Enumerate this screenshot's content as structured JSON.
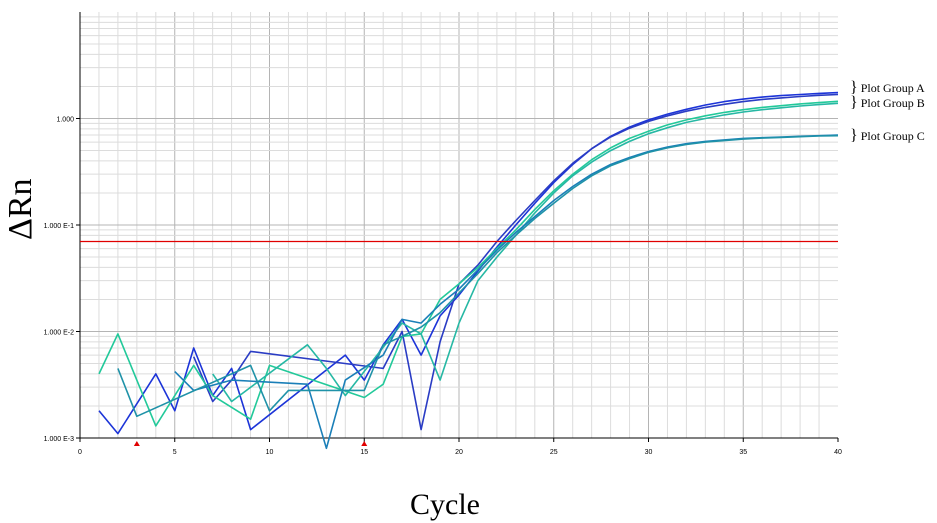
{
  "chart_data": {
    "type": "line",
    "title": "",
    "xlabel": "Cycle",
    "ylabel": "ΔRn",
    "y_scale": "log",
    "xlim": [
      0,
      40
    ],
    "ylim": [
      0.001,
      10
    ],
    "x_ticks": [
      "0",
      "5",
      "10",
      "15",
      "20",
      "25",
      "30",
      "35",
      "40"
    ],
    "y_ticks": [
      "1.000 E-3",
      "1.000 E-2",
      "1.000 E-1",
      "1.000"
    ],
    "grid": true,
    "threshold": 0.07,
    "threshold_color": "#e00000",
    "baseline_markers": [
      3,
      15
    ],
    "plot_groups": [
      {
        "name": "Plot Group A",
        "color": "#1c34d8",
        "plateau": 1.75
      },
      {
        "name": "Plot Group B",
        "color": "#22c99a",
        "plateau": 1.45
      },
      {
        "name": "Plot Group C",
        "color": "#1a7fb8",
        "plateau": 0.7
      }
    ],
    "series": [
      {
        "group": "A",
        "color": "#1c34d8",
        "x": [
          1,
          2,
          4,
          5,
          6,
          7,
          8,
          9,
          14,
          15,
          16,
          17,
          18,
          19,
          20,
          21,
          22,
          23,
          24,
          25,
          26,
          27,
          28,
          29,
          30,
          31,
          32,
          33,
          34,
          35,
          36,
          37,
          38,
          39,
          40
        ],
        "y": [
          0.0018,
          0.0011,
          0.004,
          0.0018,
          0.007,
          0.0025,
          0.0045,
          0.0012,
          0.006,
          0.0035,
          0.0075,
          0.013,
          0.006,
          0.014,
          0.022,
          0.037,
          0.062,
          0.1,
          0.16,
          0.25,
          0.37,
          0.52,
          0.68,
          0.83,
          0.97,
          1.1,
          1.22,
          1.34,
          1.44,
          1.52,
          1.59,
          1.64,
          1.68,
          1.72,
          1.75
        ]
      },
      {
        "group": "A",
        "color": "#2a3cc4",
        "x": [
          6,
          7,
          8,
          9,
          16,
          17,
          18,
          19,
          20,
          21,
          22,
          23,
          24,
          25,
          26,
          27,
          28,
          29,
          30,
          31,
          32,
          33,
          34,
          35,
          36,
          37,
          38,
          39,
          40
        ],
        "y": [
          0.0058,
          0.0022,
          0.0035,
          0.0065,
          0.0045,
          0.01,
          0.0012,
          0.008,
          0.028,
          0.042,
          0.07,
          0.11,
          0.17,
          0.26,
          0.38,
          0.52,
          0.67,
          0.81,
          0.94,
          1.06,
          1.17,
          1.27,
          1.36,
          1.44,
          1.51,
          1.56,
          1.61,
          1.65,
          1.68
        ]
      },
      {
        "group": "B",
        "color": "#22c99a",
        "x": [
          1,
          2,
          3,
          4,
          6,
          7,
          9,
          10,
          15,
          16,
          17,
          18,
          19,
          20,
          21,
          22,
          23,
          24,
          25,
          26,
          27,
          28,
          29,
          30,
          31,
          32,
          33,
          34,
          35,
          36,
          37,
          38,
          39,
          40
        ],
        "y": [
          0.004,
          0.0095,
          0.0035,
          0.0013,
          0.0048,
          0.0025,
          0.0015,
          0.0048,
          0.0024,
          0.0032,
          0.009,
          0.0095,
          0.02,
          0.028,
          0.04,
          0.06,
          0.09,
          0.14,
          0.21,
          0.3,
          0.41,
          0.53,
          0.65,
          0.76,
          0.87,
          0.97,
          1.06,
          1.14,
          1.21,
          1.27,
          1.32,
          1.37,
          1.41,
          1.45
        ]
      },
      {
        "group": "B",
        "color": "#26b8a4",
        "x": [
          7,
          8,
          12,
          13,
          14,
          17,
          18,
          19,
          20,
          21,
          22,
          23,
          24,
          25,
          26,
          27,
          28,
          29,
          30,
          31,
          32,
          33,
          34,
          35,
          36,
          37,
          38,
          39,
          40
        ],
        "y": [
          0.004,
          0.0022,
          0.0075,
          0.0045,
          0.0025,
          0.012,
          0.0095,
          0.0035,
          0.012,
          0.03,
          0.05,
          0.08,
          0.13,
          0.2,
          0.29,
          0.39,
          0.5,
          0.61,
          0.72,
          0.82,
          0.92,
          1.0,
          1.08,
          1.15,
          1.21,
          1.26,
          1.31,
          1.35,
          1.39
        ]
      },
      {
        "group": "C",
        "color": "#1a7fb8",
        "x": [
          5,
          6,
          8,
          12,
          13,
          14,
          16,
          17,
          18,
          19,
          20,
          21,
          22,
          23,
          24,
          25,
          26,
          27,
          28,
          29,
          30,
          31,
          32,
          33,
          34,
          35,
          36,
          37,
          38,
          39,
          40
        ],
        "y": [
          0.0042,
          0.0028,
          0.0035,
          0.0032,
          0.0008,
          0.0035,
          0.006,
          0.013,
          0.012,
          0.018,
          0.025,
          0.038,
          0.058,
          0.085,
          0.12,
          0.17,
          0.23,
          0.3,
          0.37,
          0.43,
          0.49,
          0.54,
          0.58,
          0.61,
          0.63,
          0.65,
          0.66,
          0.67,
          0.68,
          0.69,
          0.7
        ]
      },
      {
        "group": "C",
        "color": "#1f92a8",
        "x": [
          2,
          3,
          9,
          10,
          11,
          15,
          16,
          17,
          18,
          19,
          20,
          21,
          22,
          23,
          24,
          25,
          26,
          27,
          28,
          29,
          30,
          31,
          32,
          33,
          34,
          35,
          36,
          37,
          38,
          39,
          40
        ],
        "y": [
          0.0045,
          0.0016,
          0.0048,
          0.0018,
          0.0028,
          0.0028,
          0.0075,
          0.009,
          0.011,
          0.015,
          0.023,
          0.035,
          0.055,
          0.08,
          0.115,
          0.16,
          0.22,
          0.29,
          0.36,
          0.42,
          0.48,
          0.53,
          0.57,
          0.6,
          0.62,
          0.64,
          0.655,
          0.665,
          0.675,
          0.685,
          0.69
        ]
      }
    ]
  }
}
